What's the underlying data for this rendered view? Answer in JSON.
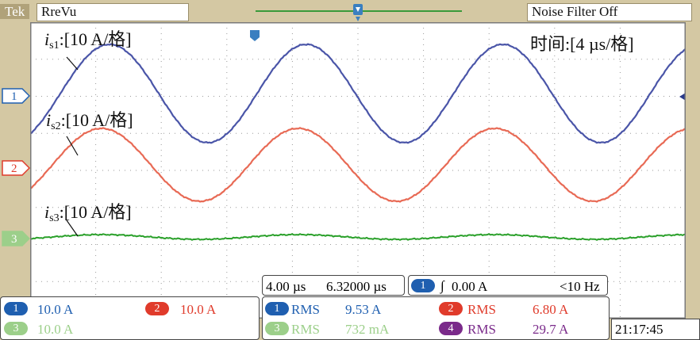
{
  "header": {
    "brand": "Tek",
    "mode": "RreVu",
    "noise_filter": "Noise Filter Off"
  },
  "time_label": "时间:[4 µs/格]",
  "traces": [
    {
      "id": "1",
      "label_sym": "i",
      "label_sub": "s1",
      "label_scale": ":[10 A/格]",
      "color": "#4a55a8"
    },
    {
      "id": "2",
      "label_sym": "i",
      "label_sub": "s2",
      "label_scale": ":[10 A/格]",
      "color": "#e86a55"
    },
    {
      "id": "3",
      "label_sym": "i",
      "label_sub": "s3",
      "label_scale": ":[10 A/格]",
      "color": "#2aa02a"
    }
  ],
  "channel_markers": [
    "1",
    "2",
    "3"
  ],
  "channels_box": [
    {
      "num": "1",
      "scale": "10.0 A",
      "color": "#1f5fb0"
    },
    {
      "num": "2",
      "scale": "10.0 A",
      "color": "#e03b2b"
    },
    {
      "num": "3",
      "scale": "10.0 A",
      "color": "#9ccf8a"
    }
  ],
  "timebase": {
    "scale": "4.00 µs",
    "position": "6.32000 µs"
  },
  "trigger": {
    "channel": "1",
    "symbol": "∫",
    "level": "0.00 A",
    "freq": "<10 Hz"
  },
  "measurements": [
    {
      "num": "1",
      "type": "RMS",
      "value": "9.53 A",
      "color": "#1f5fb0"
    },
    {
      "num": "2",
      "type": "RMS",
      "value": "6.80 A",
      "color": "#e03b2b"
    },
    {
      "num": "3",
      "type": "RMS",
      "value": "732 mA",
      "color": "#9ccf8a"
    },
    {
      "num": "4",
      "type": "RMS",
      "value": "29.7 A",
      "color": "#7a2a8a"
    }
  ],
  "clock": "21:17:45"
}
